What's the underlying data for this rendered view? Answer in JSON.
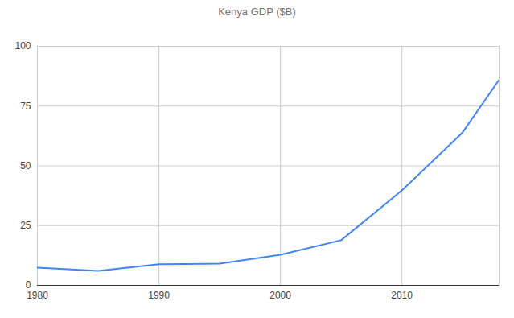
{
  "chart_data": {
    "type": "line",
    "title": "Kenya GDP ($B)",
    "x": [
      1980,
      1985,
      1990,
      1995,
      2000,
      2005,
      2010,
      2015,
      2018
    ],
    "values": [
      7.4,
      6.1,
      8.8,
      9.1,
      12.8,
      18.9,
      39.7,
      64,
      86
    ],
    "color": "#4285f4",
    "xlim": [
      1980,
      2018
    ],
    "xticks": [
      1980,
      1990,
      2000,
      2010
    ],
    "ylim": [
      0,
      100
    ],
    "yticks": [
      0,
      25,
      50,
      75,
      100
    ],
    "grid": true
  }
}
